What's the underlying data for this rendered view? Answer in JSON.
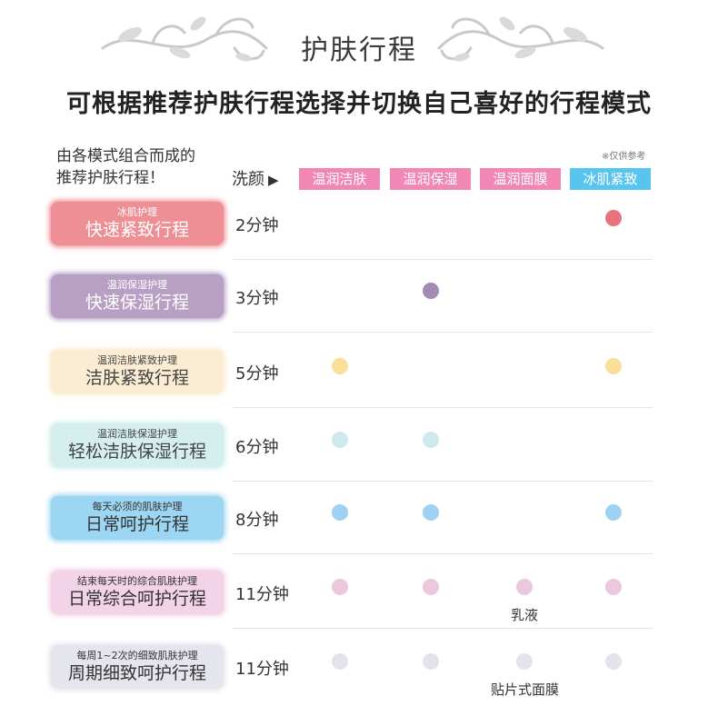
{
  "header": {
    "title": "护肤行程",
    "subtitle": "可根据推荐护肤行程选择并切换自己喜好的行程模式"
  },
  "intro": {
    "line1": "由各模式组合而成的",
    "line2": "推荐护肤行程！"
  },
  "wash": {
    "label": "洗颜",
    "arrow": "▶"
  },
  "note": "※仅供参考",
  "columns": [
    "温润洁肤",
    "温润保湿",
    "温润面膜",
    "冰肌紧致"
  ],
  "column_colors": [
    "#f087b4",
    "#f087b4",
    "#f087b4",
    "#58c5ef"
  ],
  "rows": [
    {
      "small": "冰肌护理",
      "big": "快速紧致行程",
      "time": "2分钟",
      "bg": "#ee8f96",
      "fg": "#ffffff",
      "dot": "#e9737c",
      "dots": [
        false,
        false,
        false,
        true
      ]
    },
    {
      "small": "温润保湿护理",
      "big": "快速保湿行程",
      "time": "3分钟",
      "bg": "#b8a0c4",
      "fg": "#ffffff",
      "dot": "#a58ab4",
      "dots": [
        false,
        true,
        false,
        false
      ]
    },
    {
      "small": "温润洁肤紧致护理",
      "big": "洁肤紧致行程",
      "time": "5分钟",
      "bg": "#fbecd3",
      "fg": "#444444",
      "dot": "#f9df9a",
      "dots": [
        true,
        false,
        false,
        true
      ]
    },
    {
      "small": "温润洁肤保湿护理",
      "big": "轻松洁肤保湿行程",
      "time": "6分钟",
      "bg": "#d5eeee",
      "fg": "#444444",
      "dot": "#cfe9ee",
      "dots": [
        true,
        true,
        false,
        false
      ]
    },
    {
      "small": "每天必须的肌肤护理",
      "big": "日常呵护行程",
      "time": "8分钟",
      "bg": "#9dd6f2",
      "fg": "#333333",
      "dot": "#9dd3f0",
      "dots": [
        true,
        true,
        false,
        true
      ]
    },
    {
      "small": "结束每天时的综合肌肤护理",
      "big": "日常综合呵护行程",
      "time": "11分钟",
      "bg": "#f2d3e7",
      "fg": "#333333",
      "dot": "#ebc8df",
      "dots": [
        true,
        true,
        true,
        true
      ],
      "extra": "乳液"
    },
    {
      "small": "每周1~2次的细致肌肤护理",
      "big": "周期细致呵护行程",
      "time": "11分钟",
      "bg": "#e5e5ee",
      "fg": "#333333",
      "dot": "#e3e3ec",
      "dots": [
        true,
        true,
        true,
        true
      ],
      "extra": "贴片式面膜"
    }
  ]
}
